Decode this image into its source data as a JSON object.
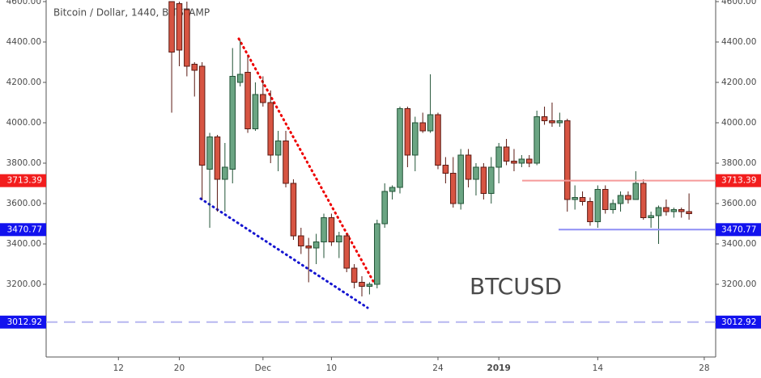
{
  "chart_data": {
    "type": "candlestick",
    "title": "Bitcoin / Dollar, 1440, BITSTAMP",
    "annotation": "BTCUSD",
    "annotation_color": "#1010e0",
    "up_color": "#6ba583",
    "up_border": "#225437",
    "down_color": "#d75442",
    "down_border": "#5b1a13",
    "categories": [
      null,
      null,
      null,
      null,
      null,
      null,
      null,
      null,
      null,
      "12",
      null,
      null,
      null,
      null,
      null,
      null,
      null,
      "20",
      null,
      null,
      null,
      null,
      null,
      null,
      null,
      null,
      null,
      null,
      "Dec",
      null,
      null,
      null,
      null,
      null,
      null,
      null,
      null,
      "10",
      null,
      null,
      null,
      null,
      null,
      null,
      null,
      null,
      null,
      null,
      null,
      null,
      null,
      "24",
      null,
      null,
      null,
      null,
      null,
      null,
      null,
      "2019",
      null,
      null,
      null,
      null,
      null,
      null,
      null,
      null,
      null,
      null,
      null,
      null,
      "14",
      null,
      null,
      null,
      null,
      null,
      null,
      null,
      null,
      null,
      null,
      null,
      null,
      null,
      "28",
      null
    ],
    "open": [
      null,
      null,
      null,
      null,
      null,
      null,
      null,
      null,
      null,
      null,
      null,
      null,
      null,
      null,
      null,
      null,
      4600,
      4590,
      4560,
      4290,
      4280,
      3770,
      3930,
      3720,
      3770,
      4200,
      4250,
      3970,
      4140,
      4100,
      3840,
      3910,
      3700,
      3440,
      3390,
      3380,
      3410,
      3530,
      3410,
      3440,
      3280,
      3210,
      3190,
      3200,
      3500,
      3660,
      3680,
      4070,
      3840,
      4000,
      3960,
      4040,
      3790,
      3750,
      3600,
      3840,
      3720,
      3780,
      3650,
      3780,
      3880,
      3810,
      3800,
      3820,
      3800,
      4030,
      4010,
      4000,
      4010,
      3620,
      3630,
      3610,
      3510,
      3670,
      3570,
      3600,
      3640,
      3620,
      3700,
      3530,
      3540,
      3580,
      3560,
      3570,
      3560,
      null,
      null,
      null
    ],
    "high": [
      null,
      null,
      null,
      null,
      null,
      null,
      null,
      null,
      null,
      null,
      null,
      null,
      null,
      null,
      null,
      null,
      4600,
      4600,
      4600,
      4300,
      4300,
      3950,
      3940,
      3900,
      4370,
      4410,
      4330,
      4200,
      4230,
      4160,
      3960,
      3960,
      3720,
      3480,
      3430,
      3450,
      3550,
      3550,
      3460,
      3450,
      3300,
      3240,
      3210,
      3520,
      3700,
      3690,
      4080,
      4080,
      4030,
      4050,
      4240,
      4050,
      3830,
      3830,
      3870,
      3870,
      3800,
      3800,
      3830,
      3900,
      3920,
      3870,
      3840,
      3840,
      4060,
      4080,
      4100,
      4050,
      4020,
      3690,
      3660,
      3630,
      3690,
      3690,
      3620,
      3660,
      3660,
      3760,
      3720,
      3560,
      3590,
      3620,
      3580,
      3580,
      3650,
      null,
      null,
      null
    ],
    "low": [
      null,
      null,
      null,
      null,
      null,
      null,
      null,
      null,
      null,
      null,
      null,
      null,
      null,
      null,
      null,
      null,
      4050,
      4280,
      4230,
      4130,
      3620,
      3480,
      3560,
      3560,
      3700,
      4180,
      3950,
      3960,
      4080,
      3800,
      3760,
      3680,
      3420,
      3350,
      3210,
      3300,
      3330,
      3390,
      3330,
      3260,
      3180,
      3140,
      3150,
      3180,
      3480,
      3620,
      3650,
      3780,
      3760,
      3950,
      3950,
      3770,
      3700,
      3580,
      3570,
      3680,
      3640,
      3620,
      3600,
      3700,
      3790,
      3760,
      3780,
      3780,
      3790,
      3990,
      3980,
      3980,
      3560,
      3570,
      3590,
      3490,
      3480,
      3550,
      3550,
      3560,
      3600,
      3620,
      3520,
      3480,
      3400,
      3540,
      3530,
      3530,
      3520,
      null,
      null,
      null
    ],
    "close": [
      null,
      null,
      null,
      null,
      null,
      null,
      null,
      null,
      null,
      null,
      null,
      null,
      null,
      null,
      null,
      null,
      4350,
      4360,
      4280,
      4260,
      3790,
      3930,
      3720,
      3780,
      4230,
      4240,
      3970,
      4140,
      4100,
      3840,
      3910,
      3700,
      3440,
      3390,
      3380,
      3410,
      3530,
      3410,
      3440,
      3280,
      3210,
      3190,
      3200,
      3500,
      3660,
      3680,
      4070,
      3840,
      4000,
      3960,
      4040,
      3790,
      3750,
      3600,
      3840,
      3720,
      3780,
      3650,
      3780,
      3880,
      3810,
      3800,
      3820,
      3800,
      4030,
      4010,
      4000,
      4010,
      3620,
      3630,
      3610,
      3510,
      3670,
      3570,
      3600,
      3640,
      3620,
      3700,
      3530,
      3540,
      3580,
      3560,
      3570,
      3560,
      3550,
      null,
      null,
      null
    ],
    "ylim": [
      2840,
      4608
    ],
    "yticks": [
      {
        "value": 3200,
        "label": "3200.00"
      },
      {
        "value": 3400,
        "label": "3400.00"
      },
      {
        "value": 3600,
        "label": "3600.00"
      },
      {
        "value": 3800,
        "label": "3800.00"
      },
      {
        "value": 4000,
        "label": "4000.00"
      },
      {
        "value": 4200,
        "label": "4200.00"
      },
      {
        "value": 4400,
        "label": "4400.00"
      },
      {
        "value": 4600,
        "label": "4600.00"
      }
    ],
    "levels": [
      {
        "value": 3713.39,
        "color": "#f59a9a",
        "label_color": "#f21d1d",
        "style": "solid"
      },
      {
        "value": 3470.77,
        "color": "#8f8ff5",
        "label_color": "#1212ee",
        "style": "solid"
      },
      {
        "value": 3012.92,
        "color": "#b7b7f0",
        "label_color": "#1212ee",
        "style": "dashed"
      }
    ]
  }
}
